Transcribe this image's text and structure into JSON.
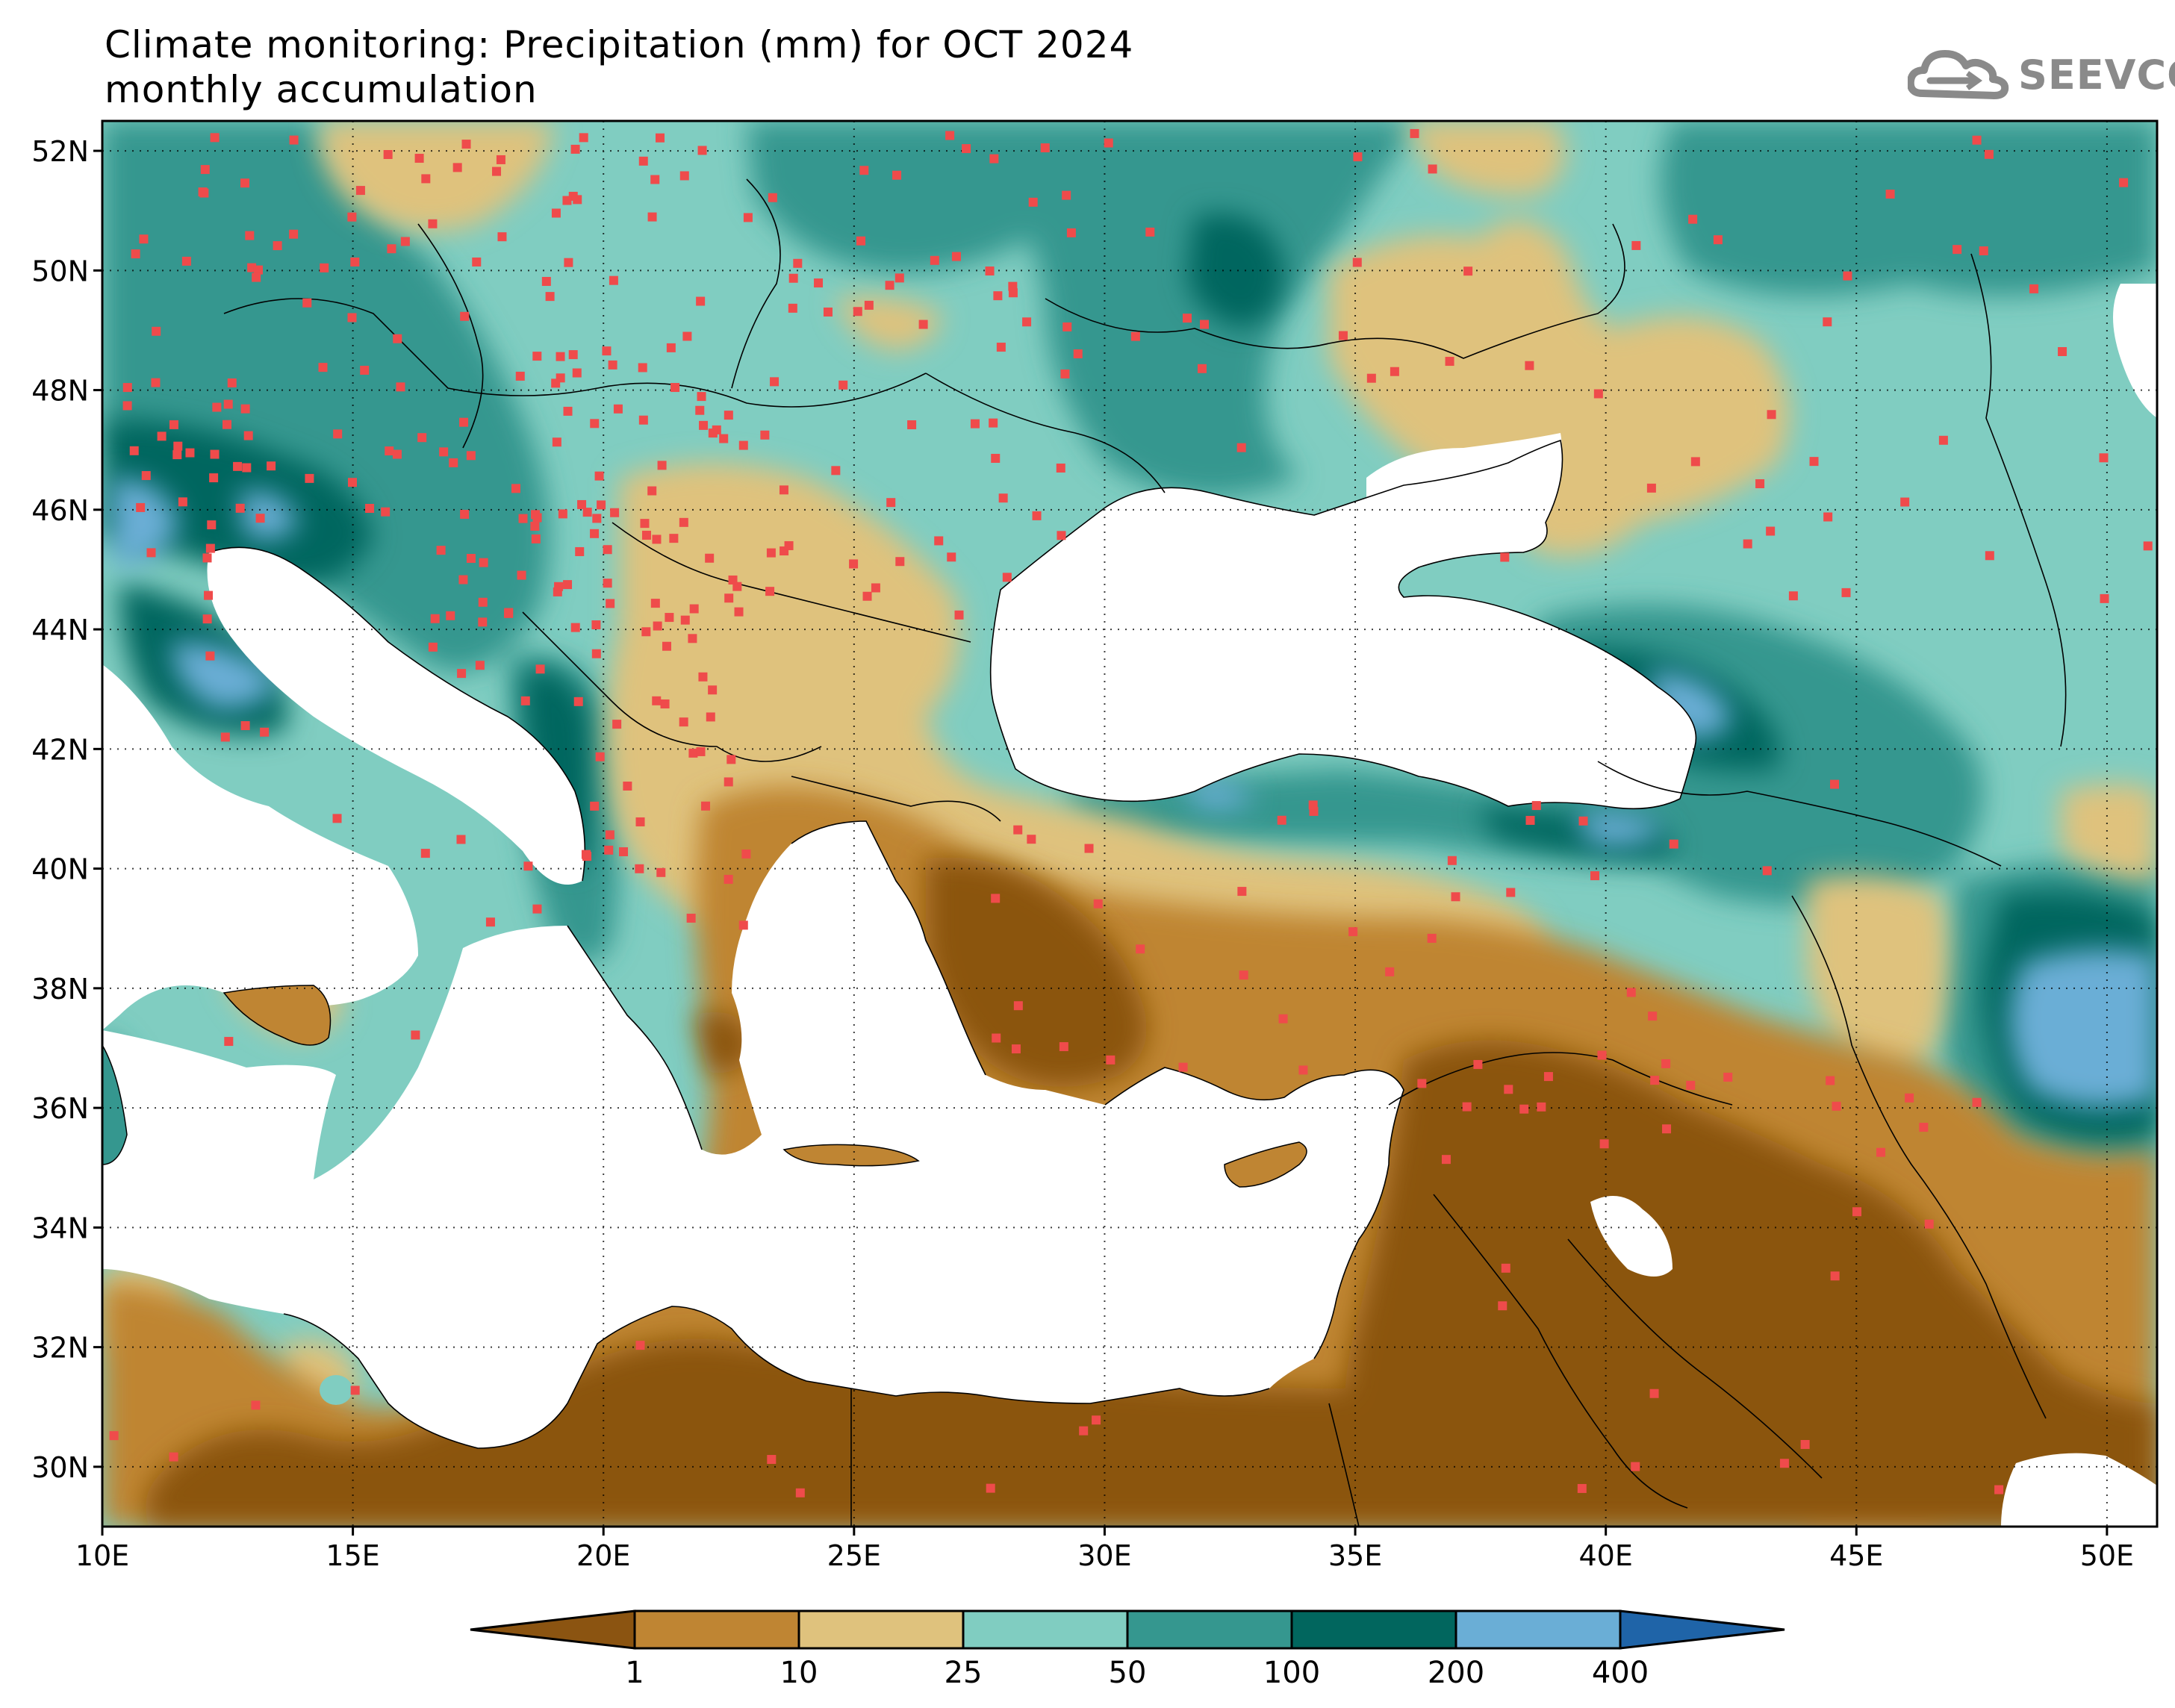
{
  "title": {
    "line1": "Climate monitoring: Precipitation (mm) for OCT 2024",
    "line2": "monthly accumulation"
  },
  "logo": {
    "text": "SEEVCCC",
    "icon": "cloud-icon",
    "color": "#8a8a8a"
  },
  "map": {
    "lat_range": [
      29,
      52.5
    ],
    "lon_range": [
      10,
      51
    ],
    "lat_labels": [
      "52N",
      "50N",
      "48N",
      "46N",
      "44N",
      "42N",
      "40N",
      "38N",
      "36N",
      "34N",
      "32N",
      "30N"
    ],
    "lon_labels": [
      "10E",
      "15E",
      "20E",
      "25E",
      "30E",
      "35E",
      "40E",
      "45E",
      "50E"
    ],
    "gridlines": "dotted",
    "station_marker_color": "#ef4b4b",
    "sea_color": "#ffffff"
  },
  "colorbar": {
    "colors": [
      "#8b5411",
      "#bf8533",
      "#dfc27d",
      "#80cdc1",
      "#35978f",
      "#01665e",
      "#6aaed6",
      "#1f64a8"
    ],
    "tick_labels": [
      "1",
      "10",
      "25",
      "50",
      "100",
      "200",
      "400"
    ],
    "extend": "both"
  }
}
